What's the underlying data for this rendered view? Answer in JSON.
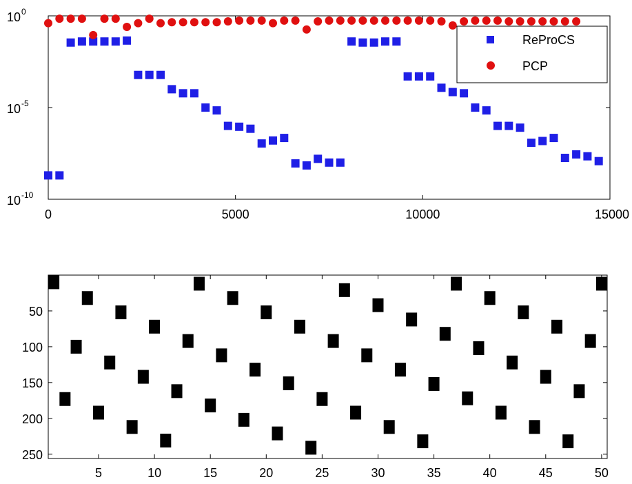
{
  "chart_data": [
    {
      "type": "scatter",
      "title": "",
      "xlabel": "",
      "ylabel": "",
      "xlim": [
        0,
        15000
      ],
      "ylim": [
        1e-10,
        1
      ],
      "yscale": "log",
      "grid": false,
      "legend_position": "top-right",
      "x_ticks": [
        {
          "value": 0,
          "label": "0"
        },
        {
          "value": 5000,
          "label": "5000"
        },
        {
          "value": 10000,
          "label": "10000"
        },
        {
          "value": 15000,
          "label": "15000"
        }
      ],
      "y_ticks": [
        {
          "value": 1e-10,
          "base": "10",
          "exp": "-10"
        },
        {
          "value": 1e-05,
          "base": "10",
          "exp": "-5"
        },
        {
          "value": 1,
          "base": "10",
          "exp": "0"
        }
      ],
      "series": [
        {
          "name": "ReProCS",
          "marker": "square",
          "color": "#1f1fe6",
          "points": [
            [
              0,
              2e-09
            ],
            [
              300,
              2e-09
            ],
            [
              600,
              0.035
            ],
            [
              900,
              0.04
            ],
            [
              1200,
              0.04
            ],
            [
              1500,
              0.04
            ],
            [
              1800,
              0.04
            ],
            [
              2100,
              0.045
            ],
            [
              2400,
              0.0006
            ],
            [
              2700,
              0.0006
            ],
            [
              3000,
              0.0006
            ],
            [
              3300,
              0.0001
            ],
            [
              3600,
              6e-05
            ],
            [
              3900,
              6e-05
            ],
            [
              4200,
              1e-05
            ],
            [
              4500,
              7e-06
            ],
            [
              4800,
              1e-06
            ],
            [
              5100,
              9e-07
            ],
            [
              5400,
              7e-07
            ],
            [
              5700,
              1.1e-07
            ],
            [
              6000,
              1.6e-07
            ],
            [
              6300,
              2.2e-07
            ],
            [
              6600,
              9e-09
            ],
            [
              6900,
              7e-09
            ],
            [
              7200,
              1.6e-08
            ],
            [
              7500,
              1e-08
            ],
            [
              7800,
              1e-08
            ],
            [
              8100,
              0.04
            ],
            [
              8400,
              0.035
            ],
            [
              8700,
              0.035
            ],
            [
              9000,
              0.04
            ],
            [
              9300,
              0.04
            ],
            [
              9600,
              0.0005
            ],
            [
              9900,
              0.0005
            ],
            [
              10200,
              0.0005
            ],
            [
              10500,
              0.00012
            ],
            [
              10800,
              7e-05
            ],
            [
              11100,
              6e-05
            ],
            [
              11400,
              1e-05
            ],
            [
              11700,
              7e-06
            ],
            [
              12000,
              1e-06
            ],
            [
              12300,
              1e-06
            ],
            [
              12600,
              8e-07
            ],
            [
              12900,
              1.2e-07
            ],
            [
              13200,
              1.5e-07
            ],
            [
              13500,
              2.2e-07
            ],
            [
              13800,
              1.8e-08
            ],
            [
              14100,
              2.8e-08
            ],
            [
              14400,
              2.2e-08
            ],
            [
              14700,
              1.2e-08
            ]
          ]
        },
        {
          "name": "PCP",
          "marker": "circle",
          "color": "#e01010",
          "points": [
            [
              0,
              0.4
            ],
            [
              300,
              0.7
            ],
            [
              600,
              0.7
            ],
            [
              900,
              0.7
            ],
            [
              1200,
              0.09
            ],
            [
              1500,
              0.7
            ],
            [
              1800,
              0.7
            ],
            [
              2100,
              0.25
            ],
            [
              2400,
              0.4
            ],
            [
              2700,
              0.7
            ],
            [
              3000,
              0.4
            ],
            [
              3300,
              0.45
            ],
            [
              3600,
              0.45
            ],
            [
              3900,
              0.45
            ],
            [
              4200,
              0.45
            ],
            [
              4500,
              0.45
            ],
            [
              4800,
              0.5
            ],
            [
              5100,
              0.55
            ],
            [
              5400,
              0.55
            ],
            [
              5700,
              0.55
            ],
            [
              6000,
              0.4
            ],
            [
              6300,
              0.55
            ],
            [
              6600,
              0.55
            ],
            [
              6900,
              0.18
            ],
            [
              7200,
              0.5
            ],
            [
              7500,
              0.55
            ],
            [
              7800,
              0.55
            ],
            [
              8100,
              0.55
            ],
            [
              8400,
              0.55
            ],
            [
              8700,
              0.55
            ],
            [
              9000,
              0.55
            ],
            [
              9300,
              0.55
            ],
            [
              9600,
              0.55
            ],
            [
              9900,
              0.55
            ],
            [
              10200,
              0.55
            ],
            [
              10500,
              0.5
            ],
            [
              10800,
              0.3
            ],
            [
              11100,
              0.5
            ],
            [
              11400,
              0.55
            ],
            [
              11700,
              0.55
            ],
            [
              12000,
              0.55
            ],
            [
              12300,
              0.5
            ],
            [
              12600,
              0.5
            ],
            [
              12900,
              0.5
            ],
            [
              13200,
              0.5
            ],
            [
              13500,
              0.5
            ],
            [
              13800,
              0.5
            ],
            [
              14100,
              0.5
            ]
          ]
        }
      ]
    },
    {
      "type": "scatter",
      "title": "",
      "xlabel": "",
      "ylabel": "",
      "xlim": [
        0.5,
        50.5
      ],
      "ylim": [
        0,
        256
      ],
      "y_reversed": true,
      "grid": false,
      "x_ticks": [
        {
          "value": 5,
          "label": "5"
        },
        {
          "value": 10,
          "label": "10"
        },
        {
          "value": 15,
          "label": "15"
        },
        {
          "value": 20,
          "label": "20"
        },
        {
          "value": 25,
          "label": "25"
        },
        {
          "value": 30,
          "label": "30"
        },
        {
          "value": 35,
          "label": "35"
        },
        {
          "value": 40,
          "label": "40"
        },
        {
          "value": 45,
          "label": "45"
        },
        {
          "value": 50,
          "label": "50"
        }
      ],
      "y_ticks": [
        {
          "value": 50,
          "label": "50"
        },
        {
          "value": 100,
          "label": "100"
        },
        {
          "value": 150,
          "label": "150"
        },
        {
          "value": 200,
          "label": "200"
        },
        {
          "value": 250,
          "label": "250"
        }
      ],
      "series": [
        {
          "marker": "square",
          "color": "#000000",
          "points": [
            [
              1,
              10
            ],
            [
              2,
              173
            ],
            [
              3,
              100
            ],
            [
              4,
              32
            ],
            [
              5,
              192
            ],
            [
              6,
              122
            ],
            [
              7,
              52
            ],
            [
              8,
              212
            ],
            [
              9,
              142
            ],
            [
              10,
              72
            ],
            [
              11,
              231
            ],
            [
              12,
              162
            ],
            [
              13,
              92
            ],
            [
              14,
              12
            ],
            [
              15,
              182
            ],
            [
              16,
              112
            ],
            [
              17,
              32
            ],
            [
              18,
              202
            ],
            [
              19,
              132
            ],
            [
              20,
              52
            ],
            [
              21,
              221
            ],
            [
              22,
              151
            ],
            [
              23,
              72
            ],
            [
              24,
              241
            ],
            [
              25,
              173
            ],
            [
              26,
              92
            ],
            [
              27,
              21
            ],
            [
              28,
              192
            ],
            [
              29,
              112
            ],
            [
              30,
              42
            ],
            [
              31,
              212
            ],
            [
              32,
              132
            ],
            [
              33,
              62
            ],
            [
              34,
              232
            ],
            [
              35,
              152
            ],
            [
              36,
              82
            ],
            [
              37,
              12
            ],
            [
              38,
              172
            ],
            [
              39,
              102
            ],
            [
              40,
              32
            ],
            [
              41,
              192
            ],
            [
              42,
              122
            ],
            [
              43,
              52
            ],
            [
              44,
              212
            ],
            [
              45,
              142
            ],
            [
              46,
              72
            ],
            [
              47,
              232
            ],
            [
              48,
              162
            ],
            [
              49,
              92
            ],
            [
              50,
              12
            ]
          ]
        }
      ]
    }
  ]
}
